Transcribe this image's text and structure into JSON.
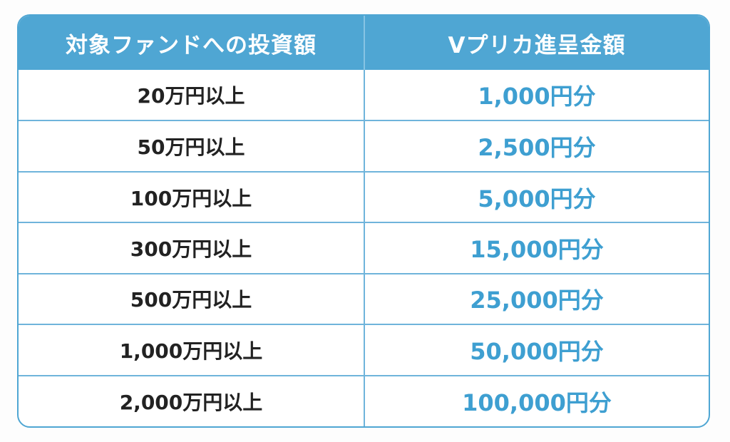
{
  "table": {
    "headers": [
      "対象ファンドへの投資額",
      "Vプリカ進呈金額"
    ],
    "rows": [
      {
        "amount": "20万円以上",
        "reward": "1,000円分"
      },
      {
        "amount": "50万円以上",
        "reward": "2,500円分"
      },
      {
        "amount": "100万円以上",
        "reward": "5,000円分"
      },
      {
        "amount": "300万円以上",
        "reward": "15,000円分"
      },
      {
        "amount": "500万円以上",
        "reward": "25,000円分"
      },
      {
        "amount": "1,000万円以上",
        "reward": "50,000円分"
      },
      {
        "amount": "2,000万円以上",
        "reward": "100,000円分"
      }
    ]
  },
  "colors": {
    "header_background": "#4fa6d3",
    "border": "#4fa6d3",
    "reward_text": "#3e9fd1",
    "amount_text": "#222222"
  }
}
